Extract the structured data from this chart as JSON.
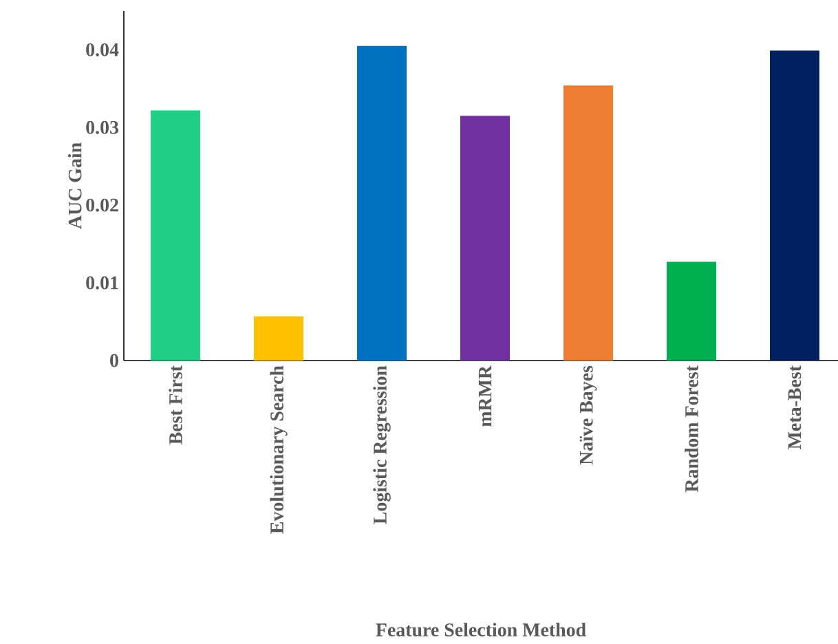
{
  "chart_data": {
    "type": "bar",
    "xlabel": "Feature Selection Method",
    "ylabel": "AUC Gain",
    "categories": [
      "Best First",
      "Evolutionary Search",
      "Logistic Regression",
      "mRMR",
      "Naïve Bayes",
      "Random Forest",
      "Meta-Best"
    ],
    "values": [
      0.0322,
      0.0057,
      0.0405,
      0.0315,
      0.0354,
      0.0127,
      0.0399
    ],
    "colors": [
      "#22ce86",
      "#ffc000",
      "#0070c0",
      "#7030a0",
      "#ed7d31",
      "#00b050",
      "#002060"
    ],
    "ylim": [
      0,
      0.045
    ],
    "yticks": [
      0,
      0.01,
      0.02,
      0.03,
      0.04
    ],
    "grid": false
  }
}
